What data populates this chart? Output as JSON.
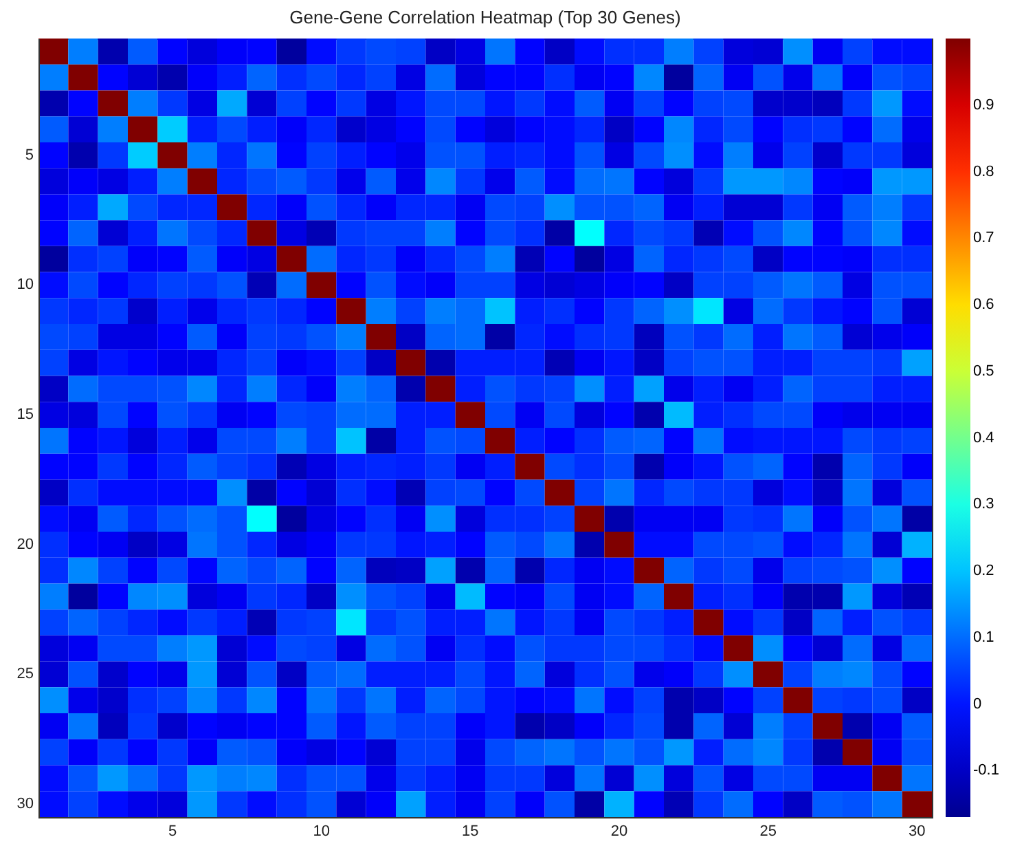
{
  "chart_data": {
    "type": "heatmap",
    "title": "Gene-Gene Correlation Heatmap (Top 30 Genes)",
    "categories": [
      null,
      null,
      null,
      null,
      "5",
      null,
      null,
      null,
      null,
      "10",
      null,
      null,
      null,
      null,
      "15",
      null,
      null,
      null,
      null,
      "20",
      null,
      null,
      null,
      null,
      "25",
      null,
      null,
      null,
      null,
      "30"
    ],
    "y_categories": [
      null,
      null,
      null,
      null,
      "5",
      null,
      null,
      null,
      null,
      "10",
      null,
      null,
      null,
      null,
      "15",
      null,
      null,
      null,
      null,
      "20",
      null,
      null,
      null,
      null,
      "25",
      null,
      null,
      null,
      null,
      "30"
    ],
    "clim": [
      -0.17,
      1
    ],
    "cticks": [
      -0.1,
      0,
      0.1,
      0.2,
      0.3,
      0.4,
      0.5,
      0.6,
      0.7,
      0.8,
      0.9
    ],
    "cells": [
      [
        1,
        0.12,
        -0.13,
        0.08,
        -0.02,
        -0.07,
        -0.03,
        -0.02,
        -0.15,
        -0.01,
        0.04,
        0.06,
        0.05,
        -0.1,
        -0.06,
        0.11,
        -0.02,
        -0.1,
        -0.01,
        0.03,
        0.03,
        0.12,
        0.05,
        -0.07,
        -0.08,
        0.14,
        -0.04,
        0.05,
        -0.01,
        -0.01
      ],
      [
        0.12,
        1,
        -0.02,
        -0.08,
        -0.13,
        -0.03,
        0.01,
        0.09,
        0.03,
        0.06,
        0.02,
        0.05,
        -0.06,
        0.1,
        -0.07,
        -0.02,
        -0.02,
        0.03,
        -0.04,
        -0.02,
        0.13,
        -0.15,
        0.09,
        -0.04,
        0.07,
        -0.05,
        0.11,
        -0.03,
        0.07,
        0.05
      ],
      [
        -0.13,
        -0.02,
        1,
        0.12,
        0.04,
        -0.06,
        0.17,
        -0.08,
        0.05,
        -0.02,
        0.04,
        -0.06,
        0.0,
        0.06,
        0.06,
        0.0,
        0.04,
        -0.01,
        0.08,
        -0.04,
        0.05,
        -0.02,
        0.05,
        0.06,
        -0.09,
        -0.09,
        -0.11,
        0.04,
        0.15,
        -0.01
      ],
      [
        0.08,
        -0.08,
        0.12,
        1,
        0.21,
        0.01,
        0.06,
        0.01,
        -0.03,
        0.02,
        -0.09,
        -0.06,
        -0.02,
        0.06,
        -0.02,
        -0.07,
        -0.02,
        -0.01,
        0.02,
        -0.1,
        -0.02,
        0.13,
        0.02,
        0.06,
        -0.02,
        0.03,
        0.04,
        -0.02,
        0.1,
        -0.05
      ],
      [
        -0.02,
        -0.13,
        0.04,
        0.21,
        1,
        0.12,
        0.02,
        0.11,
        -0.02,
        0.05,
        0.01,
        -0.02,
        -0.05,
        0.07,
        0.07,
        0.01,
        0.02,
        -0.01,
        0.07,
        -0.06,
        0.06,
        0.14,
        -0.01,
        0.12,
        -0.05,
        0.05,
        -0.09,
        0.04,
        0.04,
        -0.07
      ],
      [
        -0.07,
        -0.03,
        -0.06,
        0.01,
        0.12,
        1,
        0.02,
        0.06,
        0.08,
        0.04,
        -0.05,
        0.08,
        -0.05,
        0.13,
        0.04,
        -0.05,
        0.08,
        -0.01,
        0.1,
        0.11,
        -0.02,
        -0.07,
        0.04,
        0.15,
        0.15,
        0.13,
        -0.02,
        -0.03,
        0.15,
        0.15
      ],
      [
        -0.03,
        0.01,
        0.17,
        0.06,
        0.02,
        0.02,
        1,
        0.02,
        -0.03,
        0.07,
        0.02,
        -0.03,
        0.02,
        0.02,
        -0.04,
        0.06,
        0.05,
        0.14,
        0.07,
        0.07,
        0.09,
        -0.04,
        0.01,
        -0.08,
        -0.08,
        0.04,
        -0.04,
        0.08,
        0.12,
        0.04
      ],
      [
        -0.02,
        0.09,
        -0.08,
        0.01,
        0.11,
        0.06,
        0.02,
        1,
        -0.06,
        -0.12,
        0.04,
        0.05,
        0.05,
        0.12,
        -0.02,
        0.06,
        0.03,
        -0.14,
        0.27,
        0.02,
        0.06,
        0.04,
        -0.12,
        -0.01,
        0.07,
        0.13,
        -0.02,
        0.07,
        0.13,
        -0.01
      ],
      [
        -0.15,
        0.03,
        0.05,
        -0.03,
        -0.02,
        0.08,
        -0.03,
        -0.06,
        1,
        0.1,
        0.02,
        0.04,
        -0.03,
        0.02,
        0.06,
        0.12,
        -0.12,
        -0.02,
        -0.15,
        -0.06,
        0.09,
        0.02,
        0.04,
        0.06,
        -0.1,
        -0.02,
        -0.02,
        -0.03,
        0.03,
        0.03
      ],
      [
        -0.01,
        0.06,
        -0.02,
        0.02,
        0.05,
        0.04,
        0.07,
        -0.12,
        0.1,
        1,
        -0.02,
        0.07,
        -0.01,
        -0.03,
        0.05,
        0.05,
        -0.06,
        -0.08,
        -0.06,
        -0.03,
        -0.02,
        -0.1,
        0.05,
        0.05,
        0.08,
        0.11,
        0.08,
        -0.06,
        0.07,
        0.07
      ],
      [
        0.04,
        0.02,
        0.04,
        -0.09,
        0.01,
        -0.05,
        0.02,
        0.04,
        0.02,
        -0.02,
        1,
        0.12,
        0.05,
        0.12,
        0.1,
        0.2,
        0.01,
        0.03,
        -0.02,
        0.04,
        0.09,
        0.14,
        0.24,
        -0.06,
        0.1,
        0.04,
        0.0,
        -0.02,
        0.07,
        -0.08
      ],
      [
        0.06,
        0.05,
        -0.06,
        -0.06,
        -0.02,
        0.08,
        -0.03,
        0.05,
        0.04,
        0.07,
        0.12,
        1,
        -0.1,
        0.09,
        0.1,
        -0.14,
        0.02,
        -0.01,
        0.03,
        0.04,
        -0.11,
        0.07,
        0.04,
        0.1,
        0.01,
        0.11,
        0.08,
        -0.08,
        -0.05,
        -0.03
      ],
      [
        0.05,
        -0.06,
        0.0,
        -0.02,
        -0.05,
        -0.05,
        0.02,
        0.05,
        -0.03,
        -0.01,
        0.05,
        -0.1,
        1,
        -0.13,
        0.01,
        0.01,
        0.01,
        -0.12,
        -0.04,
        0.0,
        -0.1,
        0.05,
        0.07,
        0.07,
        0.01,
        0.01,
        0.05,
        0.05,
        0.04,
        0.16
      ],
      [
        -0.1,
        0.1,
        0.06,
        0.06,
        0.07,
        0.13,
        0.02,
        0.12,
        0.02,
        -0.03,
        0.12,
        0.09,
        -0.13,
        1,
        0.01,
        0.07,
        0.04,
        0.05,
        0.14,
        0.01,
        0.16,
        -0.05,
        0.01,
        -0.04,
        0.01,
        0.09,
        0.05,
        0.05,
        0.01,
        0.01
      ],
      [
        -0.06,
        -0.07,
        0.06,
        -0.02,
        0.07,
        0.04,
        -0.04,
        -0.02,
        0.06,
        0.05,
        0.1,
        0.1,
        0.01,
        0.01,
        1,
        0.06,
        -0.04,
        0.06,
        -0.07,
        -0.02,
        -0.13,
        0.19,
        0.01,
        0.03,
        0.06,
        0.06,
        -0.03,
        -0.05,
        -0.04,
        -0.04
      ],
      [
        0.11,
        -0.02,
        0.0,
        -0.07,
        0.01,
        -0.05,
        0.06,
        0.06,
        0.12,
        0.05,
        0.2,
        -0.14,
        0.01,
        0.07,
        0.06,
        1,
        0.01,
        -0.02,
        0.03,
        0.08,
        0.09,
        -0.02,
        0.11,
        -0.01,
        0.0,
        0.0,
        0.0,
        0.06,
        0.04,
        0.05
      ],
      [
        -0.02,
        -0.02,
        0.04,
        -0.02,
        0.02,
        0.08,
        0.05,
        0.03,
        -0.12,
        -0.06,
        0.01,
        0.02,
        0.01,
        0.04,
        -0.04,
        0.01,
        1,
        0.06,
        0.03,
        0.06,
        -0.13,
        -0.03,
        0.0,
        0.07,
        0.09,
        -0.02,
        -0.13,
        0.09,
        0.04,
        -0.03
      ],
      [
        -0.1,
        0.03,
        -0.01,
        -0.01,
        -0.01,
        -0.01,
        0.14,
        -0.14,
        -0.02,
        -0.08,
        0.03,
        -0.01,
        -0.12,
        0.05,
        0.06,
        -0.02,
        0.06,
        1,
        0.05,
        0.11,
        0.02,
        0.06,
        0.04,
        0.04,
        -0.07,
        -0.01,
        -0.1,
        0.11,
        -0.07,
        0.07
      ],
      [
        -0.01,
        -0.04,
        0.08,
        0.02,
        0.07,
        0.1,
        0.07,
        0.27,
        -0.15,
        -0.06,
        -0.02,
        0.03,
        -0.04,
        0.14,
        -0.07,
        0.03,
        0.03,
        0.05,
        1,
        -0.13,
        -0.04,
        -0.04,
        -0.04,
        0.04,
        0.03,
        0.11,
        -0.03,
        0.07,
        0.11,
        -0.14
      ],
      [
        0.03,
        -0.02,
        -0.04,
        -0.1,
        -0.06,
        0.11,
        0.07,
        0.02,
        -0.06,
        -0.03,
        0.04,
        0.04,
        0.0,
        0.01,
        -0.02,
        0.08,
        0.06,
        0.11,
        -0.13,
        1,
        -0.01,
        -0.01,
        0.06,
        0.06,
        0.07,
        -0.01,
        0.02,
        0.11,
        -0.08,
        0.18
      ],
      [
        0.03,
        0.13,
        0.05,
        -0.02,
        0.06,
        -0.02,
        0.09,
        0.06,
        0.09,
        -0.02,
        0.09,
        -0.11,
        -0.1,
        0.16,
        -0.13,
        0.09,
        -0.13,
        0.02,
        -0.04,
        -0.01,
        1,
        0.09,
        0.04,
        0.06,
        -0.05,
        0.05,
        0.06,
        0.07,
        0.14,
        -0.02
      ],
      [
        0.12,
        -0.15,
        -0.02,
        0.13,
        0.14,
        -0.07,
        -0.04,
        0.04,
        0.02,
        -0.1,
        0.14,
        0.07,
        0.05,
        -0.05,
        0.19,
        -0.02,
        -0.03,
        0.06,
        -0.04,
        -0.01,
        0.09,
        1,
        0.01,
        0.03,
        -0.03,
        -0.13,
        -0.13,
        0.15,
        -0.07,
        -0.12
      ],
      [
        0.05,
        0.09,
        0.05,
        0.02,
        -0.01,
        0.04,
        0.01,
        -0.12,
        0.04,
        0.05,
        0.24,
        0.04,
        0.07,
        0.01,
        0.01,
        0.11,
        0.0,
        0.04,
        -0.04,
        0.06,
        0.04,
        0.01,
        1,
        -0.01,
        0.04,
        -0.1,
        0.09,
        0.01,
        0.07,
        0.04
      ],
      [
        -0.07,
        -0.04,
        0.06,
        0.06,
        0.12,
        0.15,
        -0.08,
        -0.01,
        0.06,
        0.05,
        -0.06,
        0.1,
        0.07,
        -0.04,
        0.03,
        -0.01,
        0.07,
        0.04,
        0.04,
        0.06,
        0.06,
        0.03,
        -0.01,
        1,
        0.14,
        -0.02,
        -0.08,
        0.1,
        -0.06,
        0.1
      ],
      [
        -0.08,
        0.07,
        -0.09,
        -0.02,
        -0.05,
        0.15,
        -0.08,
        0.07,
        -0.1,
        0.08,
        0.1,
        0.01,
        0.01,
        0.01,
        0.06,
        0.0,
        0.09,
        -0.07,
        0.03,
        0.07,
        -0.05,
        -0.03,
        0.04,
        0.14,
        1,
        0.05,
        0.12,
        0.13,
        0.06,
        -0.02
      ],
      [
        0.14,
        -0.05,
        -0.09,
        0.03,
        0.05,
        0.13,
        0.04,
        0.13,
        -0.02,
        0.11,
        0.04,
        0.11,
        0.01,
        0.09,
        0.06,
        0.0,
        -0.02,
        -0.01,
        0.11,
        -0.01,
        0.05,
        -0.13,
        -0.1,
        -0.02,
        0.05,
        1,
        0.05,
        0.04,
        0.06,
        -0.1
      ],
      [
        -0.04,
        0.11,
        -0.11,
        0.04,
        -0.09,
        -0.02,
        -0.04,
        -0.02,
        -0.02,
        0.08,
        0.0,
        0.08,
        0.05,
        0.05,
        -0.03,
        0.0,
        -0.13,
        -0.1,
        -0.03,
        0.02,
        0.06,
        -0.13,
        0.09,
        -0.08,
        0.12,
        0.05,
        1,
        -0.13,
        -0.04,
        0.08
      ],
      [
        0.05,
        -0.03,
        0.04,
        -0.02,
        0.04,
        -0.03,
        0.08,
        0.07,
        -0.03,
        -0.06,
        -0.02,
        -0.08,
        0.05,
        0.05,
        -0.05,
        0.06,
        0.09,
        0.11,
        0.07,
        0.11,
        0.07,
        0.15,
        0.01,
        0.1,
        0.13,
        0.04,
        -0.13,
        1,
        -0.04,
        0.07
      ],
      [
        -0.01,
        0.07,
        0.15,
        0.1,
        0.04,
        0.15,
        0.12,
        0.13,
        0.03,
        0.07,
        0.07,
        -0.05,
        0.04,
        0.01,
        -0.04,
        0.04,
        0.04,
        -0.07,
        0.11,
        -0.08,
        0.14,
        -0.07,
        0.07,
        -0.06,
        0.06,
        0.06,
        -0.04,
        -0.04,
        1,
        0.11
      ],
      [
        -0.01,
        0.05,
        -0.01,
        -0.05,
        -0.07,
        0.15,
        0.04,
        -0.01,
        0.03,
        0.07,
        -0.08,
        -0.03,
        0.16,
        0.01,
        -0.04,
        0.05,
        -0.03,
        0.07,
        -0.14,
        0.18,
        -0.02,
        -0.12,
        0.04,
        0.1,
        -0.02,
        -0.1,
        0.08,
        0.07,
        0.11,
        1
      ]
    ]
  }
}
